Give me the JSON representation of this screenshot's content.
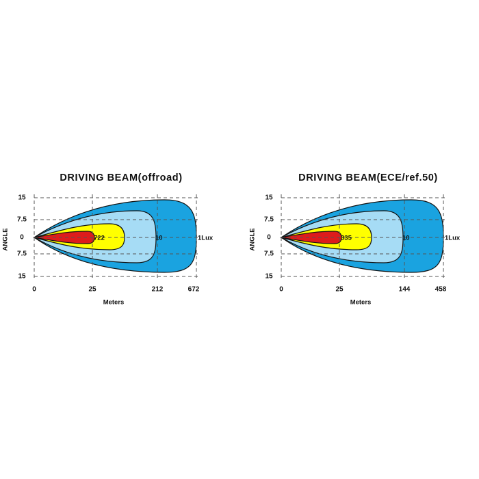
{
  "panels": [
    {
      "title": "DRIVING  BEAM(offroad)",
      "angle_label": "ANGLE",
      "y_labels": [
        "15",
        "7.5",
        "0",
        "7.5",
        "15"
      ],
      "x_labels": [
        "0",
        "25",
        "212",
        "672"
      ],
      "x_title": "Meters",
      "contour_labels": [
        "722",
        "10",
        "1Lux"
      ]
    },
    {
      "title": "DRIVING  BEAM(ECE/ref.50)",
      "angle_label": "ANGLE",
      "y_labels": [
        "15",
        "7.5",
        "0",
        "7.5",
        "15"
      ],
      "x_labels": [
        "0",
        "25",
        "144",
        "458"
      ],
      "x_title": "Meters",
      "contour_labels": [
        "335",
        "10",
        "1Lux"
      ]
    }
  ]
}
